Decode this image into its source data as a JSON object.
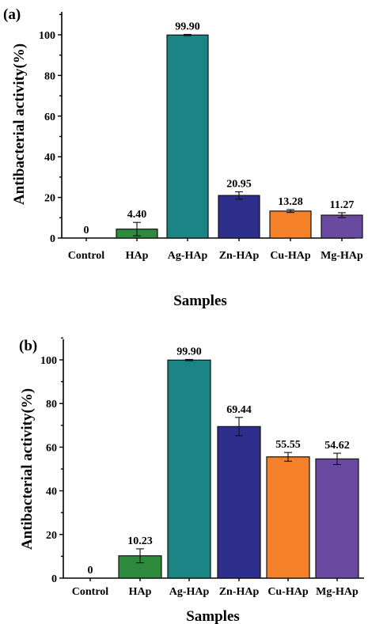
{
  "chart_data": [
    {
      "type": "bar",
      "panel_label": "(a)",
      "xlabel": "Samples",
      "ylabel": "Antibacterial activity(%)",
      "ylim": [
        0,
        110
      ],
      "yticks": [
        "0",
        "20",
        "40",
        "60",
        "80",
        "100"
      ],
      "grid": false,
      "categories": [
        "Control",
        "HAp",
        "Ag-HAp",
        "Zn-HAp",
        "Cu-HAp",
        "Mg-HAp"
      ],
      "values": [
        0,
        4.4,
        99.9,
        20.95,
        13.28,
        11.27
      ],
      "value_labels": [
        "0",
        "4.40",
        "99.90",
        "20.95",
        "13.28",
        "11.27"
      ],
      "errors": [
        0,
        3.3,
        0.3,
        1.8,
        0.7,
        1.2
      ],
      "colors": [
        "#ffffff",
        "#2e8b3e",
        "#1b8585",
        "#2e2e8c",
        "#f5822a",
        "#6a4aa0"
      ]
    },
    {
      "type": "bar",
      "panel_label": "(b)",
      "xlabel": "Samples",
      "ylabel": "Antibacterial activity(%)",
      "ylim": [
        0,
        110
      ],
      "yticks": [
        "0",
        "20",
        "40",
        "60",
        "80",
        "100"
      ],
      "grid": false,
      "categories": [
        "Control",
        "HAp",
        "Ag-HAp",
        "Zn-HAp",
        "Cu-HAp",
        "Mg-HAp"
      ],
      "values": [
        0,
        10.23,
        99.9,
        69.44,
        55.55,
        54.62
      ],
      "value_labels": [
        "0",
        "10.23",
        "99.90",
        "69.44",
        "55.55",
        "54.62"
      ],
      "errors": [
        0,
        3.2,
        0.3,
        4.2,
        2.0,
        2.6
      ],
      "colors": [
        "#ffffff",
        "#2e8b3e",
        "#1b8585",
        "#2e2e8c",
        "#f5822a",
        "#6a4aa0"
      ]
    }
  ]
}
